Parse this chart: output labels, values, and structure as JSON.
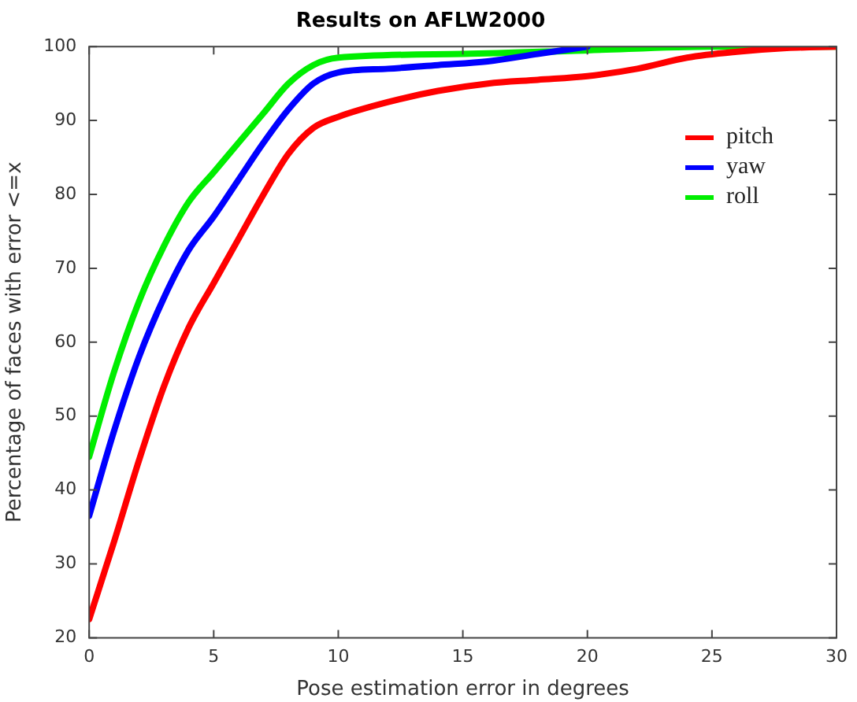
{
  "chart_data": {
    "type": "line",
    "title": "Results on AFLW2000",
    "xlabel": "Pose estimation error in degrees",
    "ylabel": "Percentage of faces with error <=x",
    "xlim": [
      0,
      30
    ],
    "xticks": [
      0,
      5,
      10,
      15,
      20,
      25,
      30
    ],
    "ylim": [
      20,
      100
    ],
    "yticks": [
      20,
      30,
      40,
      50,
      60,
      70,
      80,
      90,
      100
    ],
    "grid": false,
    "legend": "top right",
    "marker": "none",
    "line_style": "solid",
    "series": [
      {
        "name": "pitch",
        "color": "#ff0000",
        "x": [
          0,
          1,
          2,
          3,
          4,
          5,
          6,
          7,
          8,
          9,
          10,
          12,
          14,
          16,
          18,
          20,
          22,
          24,
          26,
          28,
          30
        ],
        "values": [
          22.5,
          33,
          44,
          54,
          62,
          68,
          74,
          80,
          85.5,
          89,
          90.5,
          92.5,
          94,
          95,
          95.5,
          96,
          97,
          98.5,
          99.3,
          99.8,
          100
        ]
      },
      {
        "name": "yaw",
        "color": "#0000ff",
        "x": [
          0,
          1,
          2,
          3,
          4,
          5,
          6,
          7,
          8,
          9,
          10,
          12,
          14,
          16,
          18,
          20
        ],
        "values": [
          36.5,
          48,
          58,
          66,
          72.5,
          77,
          82,
          87,
          91.5,
          95,
          96.5,
          97,
          97.5,
          98,
          99,
          100
        ]
      },
      {
        "name": "roll",
        "color": "#00ee00",
        "x": [
          0,
          1,
          2,
          3,
          4,
          5,
          6,
          7,
          8,
          9,
          10,
          15,
          20,
          25,
          30
        ],
        "values": [
          44.5,
          56,
          65.5,
          73,
          79,
          83,
          87,
          91,
          95,
          97.5,
          98.5,
          99,
          99.5,
          100,
          100
        ]
      }
    ]
  }
}
